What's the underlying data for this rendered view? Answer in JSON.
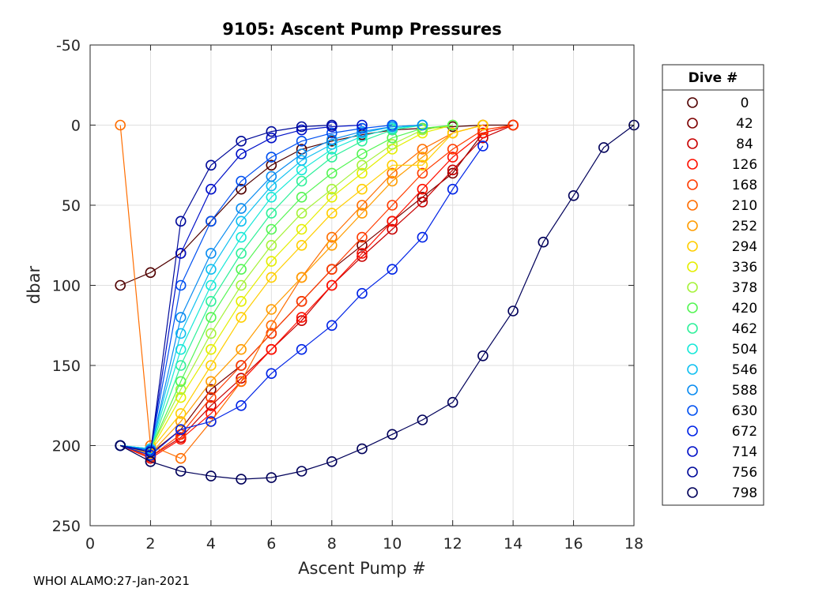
{
  "chart_data": {
    "type": "line",
    "title": "9105: Ascent Pump Pressures",
    "xlabel": "Ascent Pump #",
    "ylabel": "dbar",
    "xlim": [
      0,
      18
    ],
    "ylim": [
      -50,
      250
    ],
    "y_reversed": true,
    "grid": true,
    "xticks": [
      0,
      2,
      4,
      6,
      8,
      10,
      12,
      14,
      16,
      18
    ],
    "yticks": [
      -50,
      0,
      50,
      100,
      150,
      200,
      250
    ],
    "legend": {
      "title": "Dive #",
      "placement": "outside-right",
      "entries": [
        {
          "label": "0",
          "color": "#500000"
        },
        {
          "label": "42",
          "color": "#7d0000"
        },
        {
          "label": "84",
          "color": "#c80000"
        },
        {
          "label": "126",
          "color": "#ff1000"
        },
        {
          "label": "168",
          "color": "#ff3c00"
        },
        {
          "label": "210",
          "color": "#ff6e00"
        },
        {
          "label": "252",
          "color": "#ff9c00"
        },
        {
          "label": "294",
          "color": "#ffce00"
        },
        {
          "label": "336",
          "color": "#e4ee00"
        },
        {
          "label": "378",
          "color": "#a6f23a"
        },
        {
          "label": "420",
          "color": "#54f554"
        },
        {
          "label": "462",
          "color": "#2ef09a"
        },
        {
          "label": "504",
          "color": "#18e8d8"
        },
        {
          "label": "546",
          "color": "#10c0f0"
        },
        {
          "label": "588",
          "color": "#0a8cf0"
        },
        {
          "label": "630",
          "color": "#0050f0"
        },
        {
          "label": "672",
          "color": "#0024e6"
        },
        {
          "label": "714",
          "color": "#0010c8"
        },
        {
          "label": "756",
          "color": "#000a9a"
        },
        {
          "label": "798",
          "color": "#00005a"
        }
      ]
    },
    "series": [
      {
        "name": "0",
        "x": [
          1,
          2,
          3,
          4,
          5,
          6,
          7,
          8,
          9,
          10,
          11,
          12,
          13,
          14
        ],
        "y": [
          100,
          92,
          80,
          60,
          40,
          25,
          15,
          10,
          6,
          3,
          2,
          1,
          0,
          0
        ]
      },
      {
        "name": "42",
        "x": [
          1,
          2,
          3,
          4,
          5,
          6,
          7,
          8,
          9,
          10,
          11,
          12,
          13,
          14
        ],
        "y": [
          200,
          205,
          190,
          165,
          150,
          130,
          110,
          90,
          75,
          60,
          45,
          30,
          5,
          0
        ]
      },
      {
        "name": "84",
        "x": [
          1,
          2,
          3,
          4,
          5,
          6,
          7,
          8,
          9,
          10,
          11,
          12,
          13,
          14
        ],
        "y": [
          200,
          207,
          195,
          175,
          158,
          140,
          122,
          100,
          82,
          65,
          48,
          28,
          8,
          0
        ]
      },
      {
        "name": "126",
        "x": [
          1,
          2,
          3,
          4,
          5,
          6,
          7,
          8,
          9,
          10,
          11,
          12,
          13,
          14
        ],
        "y": [
          200,
          208,
          196,
          180,
          160,
          140,
          120,
          100,
          80,
          60,
          40,
          20,
          5,
          0
        ]
      },
      {
        "name": "168",
        "x": [
          1,
          2,
          3,
          4,
          5,
          6,
          7,
          8,
          9,
          10,
          11,
          12,
          13,
          14
        ],
        "y": [
          200,
          207,
          193,
          170,
          150,
          130,
          110,
          90,
          70,
          50,
          30,
          15,
          3,
          0
        ]
      },
      {
        "name": "210",
        "x": [
          1,
          2,
          3,
          4,
          5,
          6,
          7,
          8,
          9,
          10,
          11,
          12,
          13
        ],
        "y": [
          0,
          200,
          208,
          185,
          160,
          125,
          95,
          70,
          50,
          30,
          15,
          5,
          0
        ]
      },
      {
        "name": "252",
        "x": [
          1,
          2,
          3,
          4,
          5,
          6,
          7,
          8,
          9,
          10,
          11,
          12,
          13
        ],
        "y": [
          200,
          205,
          185,
          160,
          140,
          115,
          95,
          75,
          55,
          35,
          20,
          5,
          0
        ]
      },
      {
        "name": "294",
        "x": [
          1,
          2,
          3,
          4,
          5,
          6,
          7,
          8,
          9,
          10,
          11,
          12,
          13
        ],
        "y": [
          200,
          203,
          180,
          150,
          120,
          95,
          75,
          55,
          40,
          25,
          25,
          5,
          0
        ]
      },
      {
        "name": "336",
        "x": [
          1,
          2,
          3,
          4,
          5,
          6,
          7,
          8,
          9,
          10,
          11,
          12
        ],
        "y": [
          200,
          203,
          170,
          140,
          110,
          85,
          65,
          45,
          30,
          15,
          5,
          0
        ]
      },
      {
        "name": "378",
        "x": [
          1,
          2,
          3,
          4,
          5,
          6,
          7,
          8,
          9,
          10,
          11,
          12
        ],
        "y": [
          200,
          202,
          165,
          130,
          100,
          75,
          55,
          40,
          25,
          12,
          3,
          0
        ]
      },
      {
        "name": "420",
        "x": [
          1,
          2,
          3,
          4,
          5,
          6,
          7,
          8,
          9,
          10,
          11,
          12
        ],
        "y": [
          200,
          202,
          160,
          120,
          90,
          65,
          45,
          30,
          18,
          8,
          2,
          0
        ]
      },
      {
        "name": "462",
        "x": [
          1,
          2,
          3,
          4,
          5,
          6,
          7,
          8,
          9,
          10,
          11
        ],
        "y": [
          200,
          202,
          150,
          110,
          80,
          55,
          35,
          20,
          10,
          3,
          0
        ]
      },
      {
        "name": "504",
        "x": [
          1,
          2,
          3,
          4,
          5,
          6,
          7,
          8,
          9,
          10,
          11
        ],
        "y": [
          200,
          202,
          140,
          100,
          70,
          45,
          28,
          15,
          7,
          2,
          0
        ]
      },
      {
        "name": "546",
        "x": [
          1,
          2,
          3,
          4,
          5,
          6,
          7,
          8,
          9,
          10,
          11
        ],
        "y": [
          200,
          202,
          130,
          90,
          60,
          38,
          22,
          12,
          5,
          1,
          0
        ]
      },
      {
        "name": "588",
        "x": [
          1,
          2,
          3,
          4,
          5,
          6,
          7,
          8,
          9,
          10,
          11
        ],
        "y": [
          200,
          203,
          120,
          80,
          52,
          32,
          18,
          9,
          4,
          1,
          0
        ]
      },
      {
        "name": "630",
        "x": [
          1,
          2,
          3,
          4,
          5,
          6,
          7,
          8,
          9,
          10
        ],
        "y": [
          200,
          203,
          100,
          60,
          35,
          20,
          10,
          5,
          2,
          0
        ]
      },
      {
        "name": "672",
        "x": [
          1,
          2,
          3,
          4,
          5,
          6,
          7,
          8,
          9,
          10,
          11,
          12,
          13
        ],
        "y": [
          200,
          206,
          190,
          185,
          175,
          155,
          140,
          125,
          105,
          90,
          70,
          40,
          13
        ]
      },
      {
        "name": "714",
        "x": [
          1,
          2,
          3,
          4,
          5,
          6,
          7,
          8,
          9
        ],
        "y": [
          200,
          204,
          80,
          40,
          18,
          8,
          3,
          1,
          0
        ]
      },
      {
        "name": "756",
        "x": [
          1,
          2,
          3,
          4,
          5,
          6,
          7,
          8
        ],
        "y": [
          200,
          204,
          60,
          25,
          10,
          4,
          1,
          0
        ]
      },
      {
        "name": "798",
        "x": [
          1,
          2,
          3,
          4,
          5,
          6,
          7,
          8,
          9,
          10,
          11,
          12,
          13,
          14,
          15,
          16,
          17,
          18
        ],
        "y": [
          200,
          210,
          216,
          219,
          221,
          220,
          216,
          210,
          202,
          193,
          184,
          173,
          144,
          116,
          73,
          44,
          14,
          0
        ]
      }
    ]
  },
  "footer": {
    "text": "WHOI ALAMO:27-Jan-2021"
  }
}
